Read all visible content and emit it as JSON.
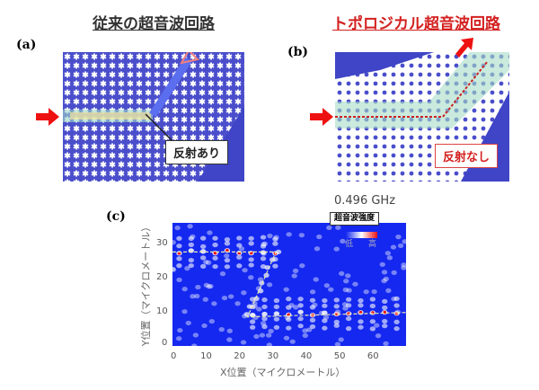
{
  "panel_a": {
    "label": "(a)",
    "title": "従来の超音波回路",
    "callout": "反射あり",
    "title_color": "#333333"
  },
  "panel_b": {
    "label": "(b)",
    "title": "トポロジカル超音波回路",
    "callout": "反射なし",
    "title_color": "#d42020"
  },
  "panel_c": {
    "label": "(c)",
    "frequency": "0.496 GHz",
    "legend_title": "超音波強度",
    "legend_low": "低",
    "legend_high": "高"
  },
  "colors": {
    "lattice_bg": "#3f45c6",
    "field_bg": "#1428f0",
    "arrow": "#ee1111"
  },
  "chart_data": {
    "type": "heatmap",
    "xlabel": "X位置（マイクロメートル）",
    "ylabel": "Y位置（マイクロメートル）",
    "xlim": [
      0,
      70
    ],
    "ylim": [
      0,
      36
    ],
    "xticks": [
      "0",
      "10",
      "20",
      "30",
      "40",
      "50",
      "60"
    ],
    "yticks": [
      "0",
      "10",
      "20",
      "30"
    ],
    "colorscale": [
      "#1428f0",
      "#ffffff",
      "#ee1111"
    ],
    "guide_path": [
      [
        0,
        27.5
      ],
      [
        31,
        27.5
      ],
      [
        22.5,
        8.5
      ],
      [
        70,
        9.8
      ]
    ]
  }
}
